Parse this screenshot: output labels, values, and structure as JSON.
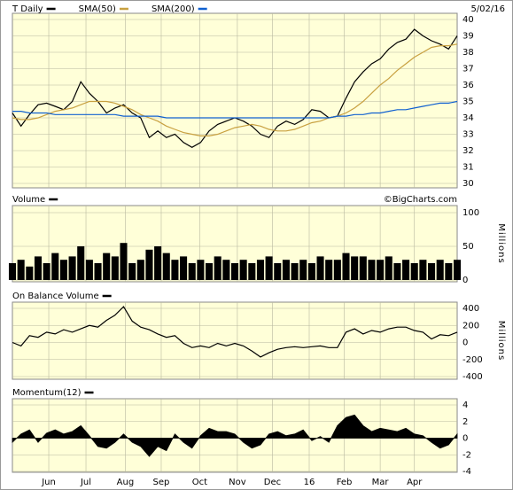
{
  "chart_data": [
    {
      "type": "line",
      "date": "5/02/16",
      "x": [
        0,
        1,
        2,
        3,
        4,
        5,
        6,
        7,
        8,
        9,
        10,
        11,
        12,
        13,
        14,
        15,
        16,
        17,
        18,
        19,
        20,
        21,
        22,
        23,
        24,
        25,
        26,
        27,
        28,
        29,
        30,
        31,
        32,
        33,
        34,
        35,
        36,
        37,
        38,
        39,
        40,
        41,
        42,
        43,
        44,
        45,
        46,
        47,
        48,
        49,
        50,
        51,
        52
      ],
      "series": [
        {
          "name": "T Daily",
          "color": "#000000",
          "values": [
            34.3,
            33.5,
            34.2,
            34.8,
            34.9,
            34.7,
            34.5,
            35.0,
            36.2,
            35.5,
            35.0,
            34.3,
            34.6,
            34.8,
            34.3,
            34.0,
            32.8,
            33.2,
            32.8,
            33.0,
            32.5,
            32.2,
            32.5,
            33.2,
            33.6,
            33.8,
            34.0,
            33.8,
            33.5,
            33.0,
            32.8,
            33.5,
            33.8,
            33.6,
            33.9,
            34.5,
            34.4,
            34.0,
            34.1,
            35.2,
            36.2,
            36.8,
            37.3,
            37.6,
            38.2,
            38.6,
            38.8,
            39.4,
            39.0,
            38.7,
            38.5,
            38.2,
            39.0
          ]
        },
        {
          "name": "SMA(50)",
          "color": "#c8a040",
          "values": [
            34.0,
            33.9,
            33.9,
            34.0,
            34.2,
            34.4,
            34.5,
            34.6,
            34.8,
            35.0,
            35.0,
            35.0,
            34.9,
            34.7,
            34.5,
            34.2,
            34.0,
            33.8,
            33.5,
            33.3,
            33.1,
            33.0,
            32.9,
            32.9,
            33.0,
            33.2,
            33.4,
            33.5,
            33.6,
            33.5,
            33.3,
            33.2,
            33.2,
            33.3,
            33.5,
            33.7,
            33.8,
            34.0,
            34.1,
            34.3,
            34.6,
            35.0,
            35.5,
            36.0,
            36.4,
            36.9,
            37.3,
            37.7,
            38.0,
            38.3,
            38.4,
            38.4,
            38.5
          ]
        },
        {
          "name": "SMA(200)",
          "color": "#1060d0",
          "values": [
            34.4,
            34.4,
            34.3,
            34.3,
            34.3,
            34.2,
            34.2,
            34.2,
            34.2,
            34.2,
            34.2,
            34.2,
            34.2,
            34.1,
            34.1,
            34.1,
            34.1,
            34.1,
            34.0,
            34.0,
            34.0,
            34.0,
            34.0,
            34.0,
            34.0,
            34.0,
            34.0,
            34.0,
            34.0,
            34.0,
            34.0,
            34.0,
            34.0,
            34.0,
            34.0,
            34.0,
            34.0,
            34.0,
            34.1,
            34.1,
            34.2,
            34.2,
            34.3,
            34.3,
            34.4,
            34.5,
            34.5,
            34.6,
            34.7,
            34.8,
            34.9,
            34.9,
            35.0
          ]
        }
      ],
      "xlim": [
        0,
        52
      ],
      "ylim": [
        30,
        40
      ],
      "yticks": [
        30,
        31,
        32,
        33,
        34,
        35,
        36,
        37,
        38,
        39,
        40
      ],
      "grid": true
    },
    {
      "type": "bar",
      "credit": "©BigCharts.com",
      "y_label": "Millions",
      "x": [
        0,
        1,
        2,
        3,
        4,
        5,
        6,
        7,
        8,
        9,
        10,
        11,
        12,
        13,
        14,
        15,
        16,
        17,
        18,
        19,
        20,
        21,
        22,
        23,
        24,
        25,
        26,
        27,
        28,
        29,
        30,
        31,
        32,
        33,
        34,
        35,
        36,
        37,
        38,
        39,
        40,
        41,
        42,
        43,
        44,
        45,
        46,
        47,
        48,
        49,
        50,
        51,
        52
      ],
      "series": [
        {
          "name": "Volume",
          "color": "#000000",
          "values": [
            25,
            30,
            20,
            35,
            25,
            40,
            30,
            35,
            50,
            30,
            25,
            40,
            35,
            55,
            25,
            30,
            45,
            50,
            40,
            30,
            35,
            25,
            30,
            25,
            35,
            30,
            25,
            30,
            25,
            30,
            35,
            25,
            30,
            25,
            30,
            25,
            35,
            30,
            30,
            40,
            35,
            35,
            30,
            30,
            35,
            25,
            30,
            25,
            30,
            25,
            30,
            25,
            30
          ]
        }
      ],
      "xlim": [
        0,
        52
      ],
      "ylim": [
        0,
        100
      ],
      "yticks": [
        0,
        50,
        100
      ],
      "grid": true
    },
    {
      "type": "line",
      "y_label": "Millions",
      "x": [
        0,
        1,
        2,
        3,
        4,
        5,
        6,
        7,
        8,
        9,
        10,
        11,
        12,
        13,
        14,
        15,
        16,
        17,
        18,
        19,
        20,
        21,
        22,
        23,
        24,
        25,
        26,
        27,
        28,
        29,
        30,
        31,
        32,
        33,
        34,
        35,
        36,
        37,
        38,
        39,
        40,
        41,
        42,
        43,
        44,
        45,
        46,
        47,
        48,
        49,
        50,
        51,
        52
      ],
      "series": [
        {
          "name": "On Balance Volume",
          "color": "#000000",
          "values": [
            0,
            -40,
            80,
            60,
            120,
            100,
            150,
            120,
            160,
            200,
            180,
            260,
            320,
            420,
            250,
            180,
            150,
            100,
            60,
            80,
            -10,
            -60,
            -40,
            -60,
            -10,
            -40,
            -10,
            -40,
            -100,
            -170,
            -120,
            -80,
            -60,
            -50,
            -60,
            -50,
            -40,
            -60,
            -60,
            120,
            160,
            100,
            140,
            120,
            160,
            180,
            180,
            140,
            120,
            40,
            90,
            80,
            120
          ]
        }
      ],
      "xlim": [
        0,
        52
      ],
      "ylim": [
        -400,
        400
      ],
      "yticks": [
        -400,
        -200,
        0,
        200,
        400
      ],
      "grid": true
    },
    {
      "type": "area",
      "x": [
        0,
        1,
        2,
        3,
        4,
        5,
        6,
        7,
        8,
        9,
        10,
        11,
        12,
        13,
        14,
        15,
        16,
        17,
        18,
        19,
        20,
        21,
        22,
        23,
        24,
        25,
        26,
        27,
        28,
        29,
        30,
        31,
        32,
        33,
        34,
        35,
        36,
        37,
        38,
        39,
        40,
        41,
        42,
        43,
        44,
        45,
        46,
        47,
        48,
        49,
        50,
        51,
        52
      ],
      "series": [
        {
          "name": "Momentum(12)",
          "color": "#000000",
          "values": [
            -0.5,
            0.5,
            1,
            -0.5,
            0.6,
            1,
            0.5,
            0.8,
            1.5,
            0.3,
            -1,
            -1.2,
            -0.5,
            0.5,
            -0.5,
            -1,
            -2.2,
            -1,
            -1.5,
            0.5,
            -0.5,
            -1.2,
            0.3,
            1.2,
            0.8,
            0.8,
            0.5,
            -0.5,
            -1.2,
            -0.8,
            0.5,
            0.8,
            0.3,
            0.5,
            1,
            -0.3,
            0.2,
            -0.5,
            1.5,
            2.5,
            2.8,
            1.5,
            0.8,
            1.2,
            1,
            0.8,
            1.2,
            0.5,
            0.3,
            -0.5,
            -1.2,
            -0.8,
            0.5
          ]
        }
      ],
      "xlim": [
        0,
        52
      ],
      "ylim": [
        -4,
        4
      ],
      "yticks": [
        -4,
        -2,
        0,
        2,
        4
      ],
      "grid": true,
      "xticks": [
        {
          "value": 4.25,
          "label": "Jun"
        },
        {
          "value": 8.6,
          "label": "Jul"
        },
        {
          "value": 13.2,
          "label": "Aug"
        },
        {
          "value": 17.4,
          "label": "Sep"
        },
        {
          "value": 21.9,
          "label": "Oct"
        },
        {
          "value": 26.3,
          "label": "Nov"
        },
        {
          "value": 30.4,
          "label": "Dec"
        },
        {
          "value": 34.7,
          "label": "16"
        },
        {
          "value": 38.8,
          "label": "Feb"
        },
        {
          "value": 43.0,
          "label": "Mar"
        },
        {
          "value": 47.0,
          "label": "Apr"
        }
      ]
    }
  ]
}
